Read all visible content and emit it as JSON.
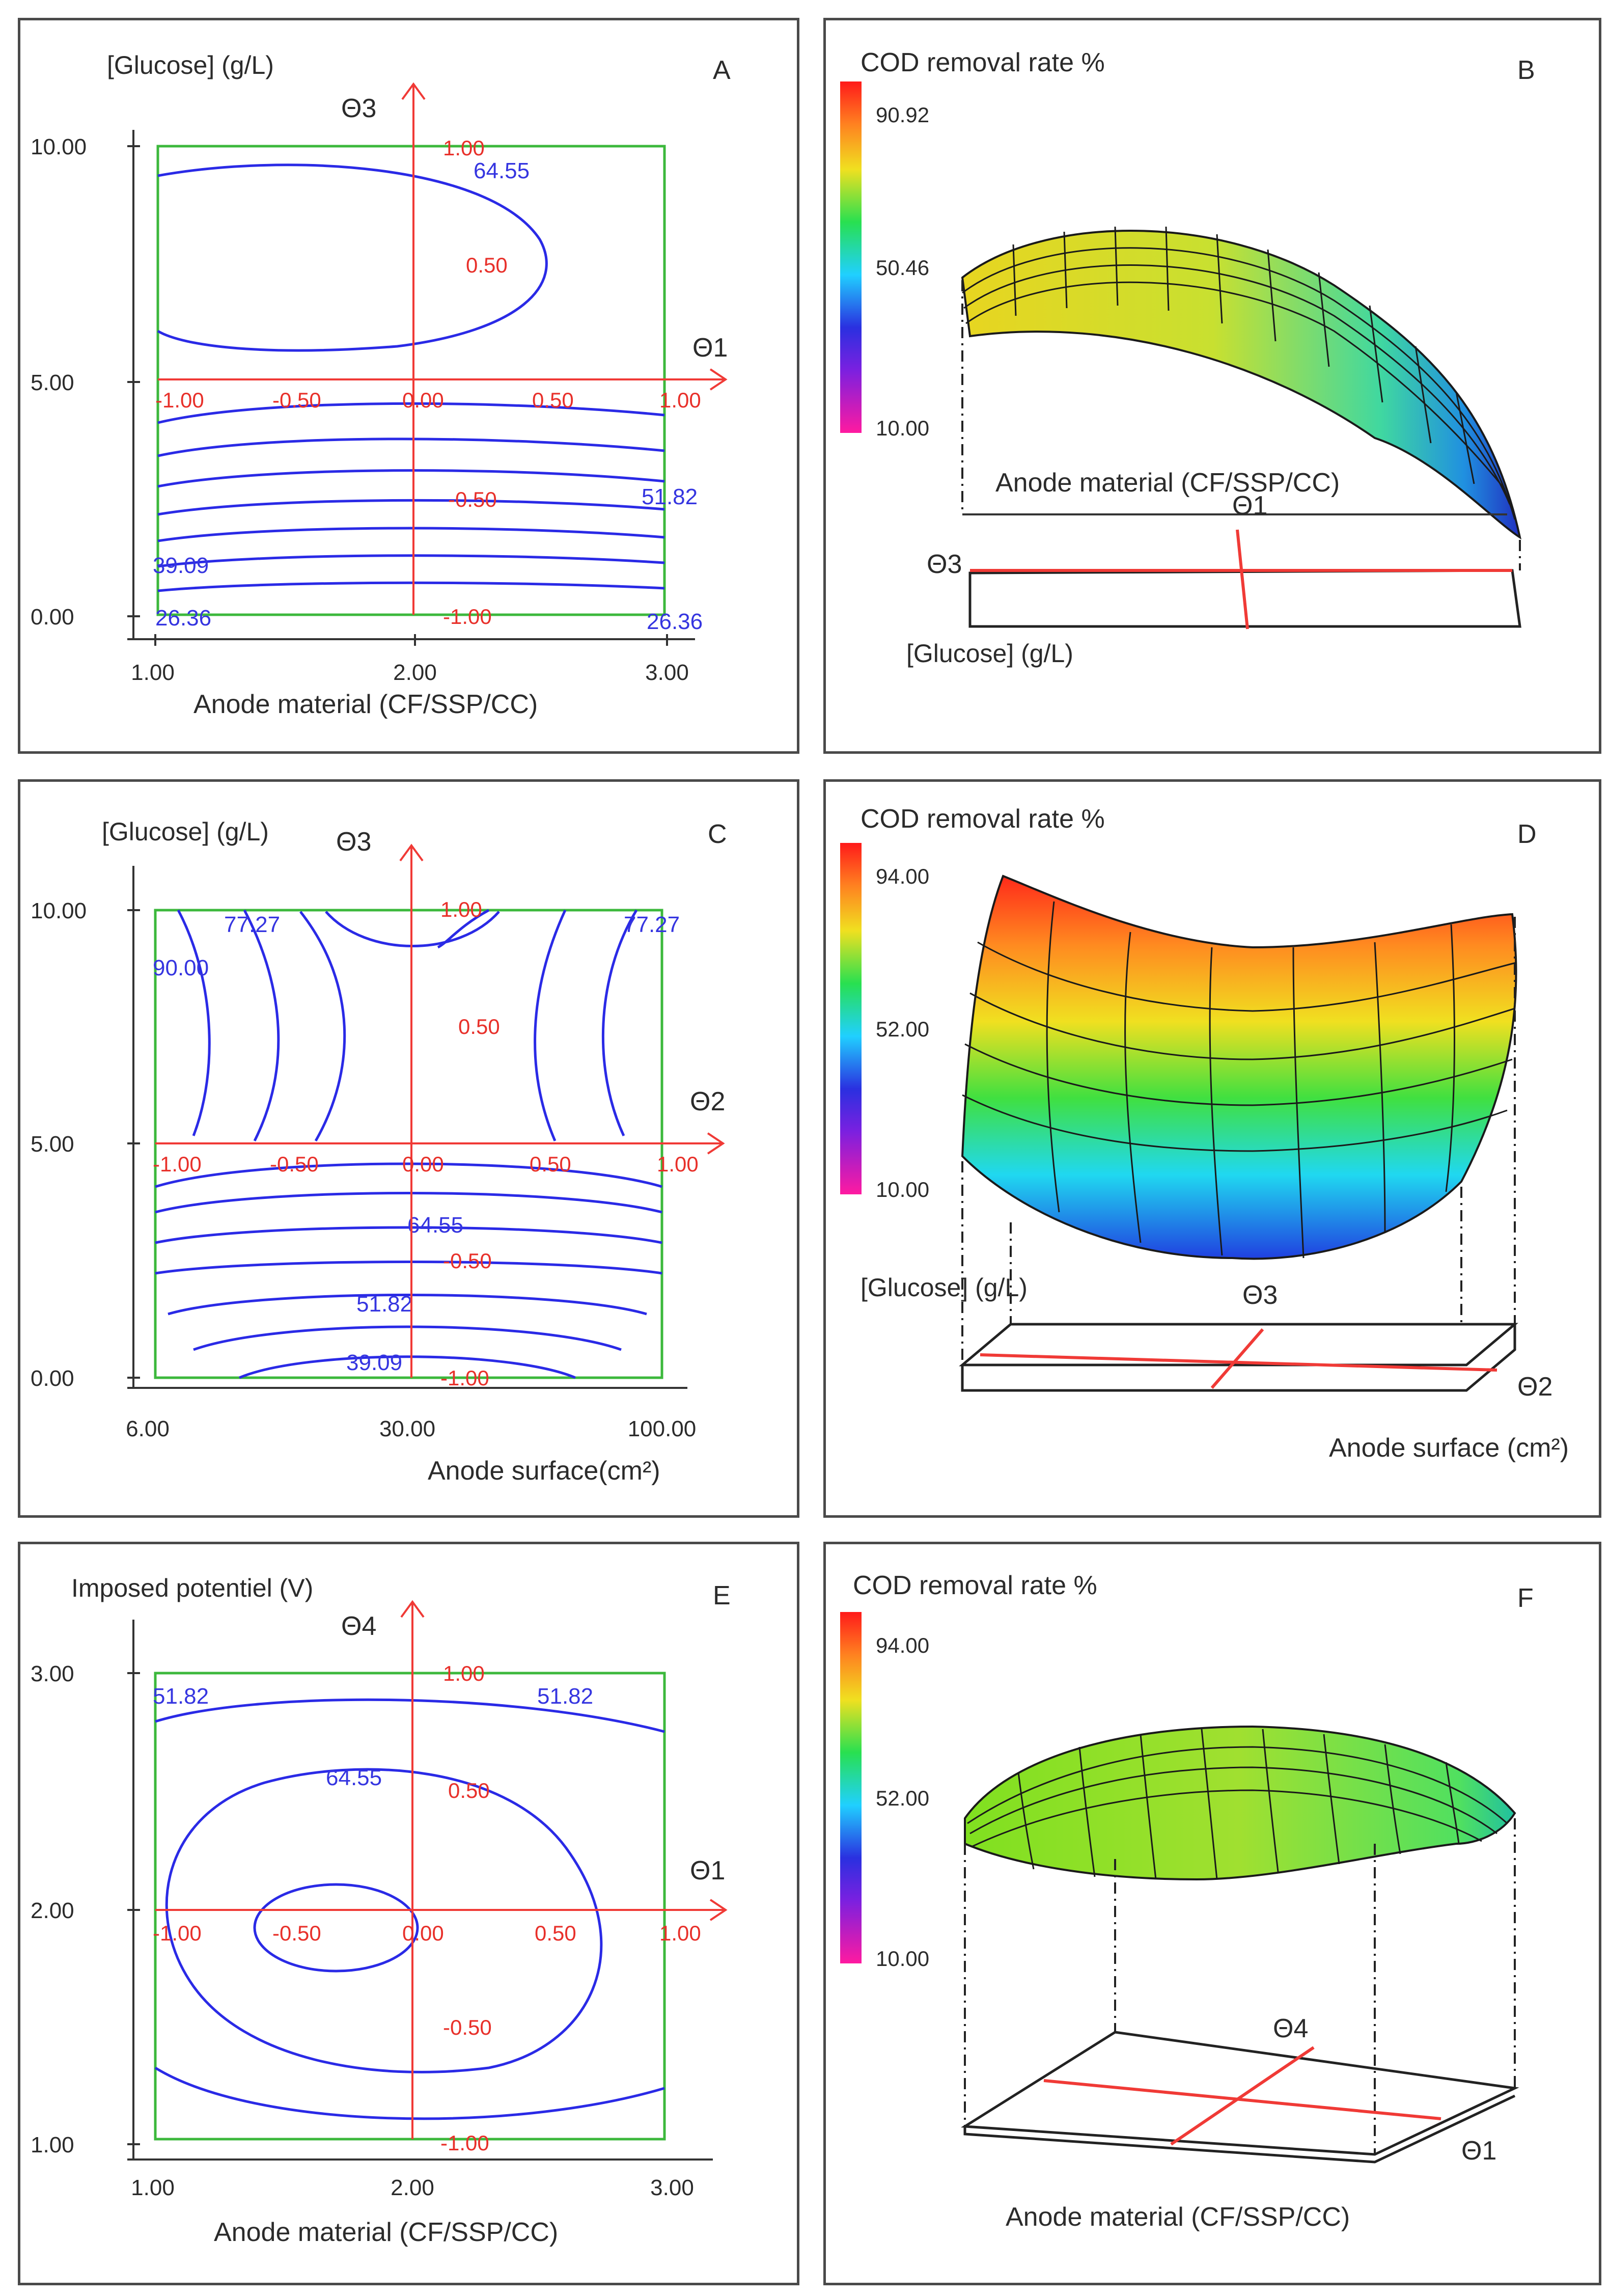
{
  "colors": {
    "contour": "#2a2ae6",
    "coded_axes": "#e8302a",
    "frame": "#3cb83c",
    "scale": [
      "#ff1aa0",
      "#3a2ad8",
      "#1ed0ff",
      "#28e050",
      "#f0e020",
      "#ff8020",
      "#ff1a1a"
    ]
  },
  "chart_data": [
    {
      "panel": "A",
      "type": "contour",
      "ylabel": "[Glucose] (g/L)",
      "xlabel": "Anode material (CF/SSP/CC)",
      "x_ticks": [
        "1.00",
        "2.00",
        "3.00"
      ],
      "y_ticks": [
        "0.00",
        "5.00",
        "10.00"
      ],
      "xlim": [
        1,
        3
      ],
      "ylim": [
        0,
        10
      ],
      "coded_axes": {
        "x": "Θ1",
        "y": "Θ3",
        "x_ticks": [
          "-1.00",
          "-0.50",
          "0.00",
          "0.50",
          "1.00"
        ],
        "y_ticks": [
          "1.00",
          "0.50",
          "-0.50",
          "-1.00"
        ]
      },
      "contour_labels": [
        "64.55",
        "51.82",
        "39.09",
        "26.36",
        "26.36"
      ]
    },
    {
      "panel": "B",
      "type": "surface",
      "title": "COD removal rate %",
      "scale_ticks": [
        "90.92",
        "50.46",
        "10.00"
      ],
      "x_label": "Anode material (CF/SSP/CC)",
      "y_label": "[Glucose] (g/L)",
      "coded_axes": [
        "Θ1",
        "Θ3"
      ]
    },
    {
      "panel": "C",
      "type": "contour",
      "ylabel": "[Glucose] (g/L)",
      "xlabel": "Anode surface(cm²)",
      "x_ticks": [
        "6.00",
        "30.00",
        "100.00"
      ],
      "y_ticks": [
        "0.00",
        "5.00",
        "10.00"
      ],
      "ylim": [
        0,
        10
      ],
      "coded_axes": {
        "x": "Θ2",
        "y": "Θ3",
        "x_ticks": [
          "-1.00",
          "-0.50",
          "0.00",
          "0.50",
          "1.00"
        ],
        "y_ticks": [
          "1.00",
          "0.50",
          "-0.50",
          "-1.00"
        ]
      },
      "contour_labels": [
        "77.27",
        "90.00",
        "77.27",
        "64.55",
        "51.82",
        "39.09"
      ]
    },
    {
      "panel": "D",
      "type": "surface",
      "title": "COD removal rate %",
      "scale_ticks": [
        "94.00",
        "52.00",
        "10.00"
      ],
      "x_label": "Anode surface (cm²)",
      "y_label": "[Glucose] (g/L)",
      "coded_axes": [
        "Θ3",
        "Θ2"
      ]
    },
    {
      "panel": "E",
      "type": "contour",
      "ylabel": "Imposed potentiel  (V)",
      "xlabel": "Anode material (CF/SSP/CC)",
      "x_ticks": [
        "1.00",
        "2.00",
        "3.00"
      ],
      "y_ticks": [
        "1.00",
        "2.00",
        "3.00"
      ],
      "xlim": [
        1,
        3
      ],
      "ylim": [
        1,
        3
      ],
      "coded_axes": {
        "x": "Θ1",
        "y": "Θ4",
        "x_ticks": [
          "-1.00",
          "-0.50",
          "0.00",
          "0.50",
          "1.00"
        ],
        "y_ticks": [
          "1.00",
          "0.50",
          "-0.50",
          "-1.00"
        ]
      },
      "contour_labels": [
        "51.82",
        "51.82",
        "64.55"
      ]
    },
    {
      "panel": "F",
      "type": "surface",
      "title": "COD removal rate %",
      "scale_ticks": [
        "94.00",
        "52.00",
        "10.00"
      ],
      "x_label": "Anode material (CF/SSP/CC)",
      "coded_axes": [
        "Θ4",
        "Θ1"
      ]
    }
  ]
}
